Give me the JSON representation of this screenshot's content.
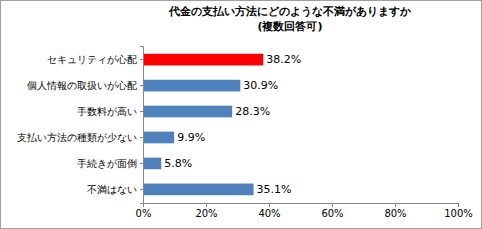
{
  "chart_data": {
    "type": "bar",
    "orientation": "horizontal",
    "title": "代金の支払い方法にどのような不満がありますか",
    "subtitle": "(複数回答可)",
    "categories": [
      "セキュリティが心配",
      "個人情報の取扱いが心配",
      "手数料が高い",
      "支払い方法の種類が少ない",
      "手続きが面倒",
      "不満はない"
    ],
    "values": [
      38.2,
      30.9,
      28.3,
      9.9,
      5.8,
      35.1
    ],
    "value_labels": [
      "38.2%",
      "30.9%",
      "28.3%",
      "9.9%",
      "5.8%",
      "35.1%"
    ],
    "colors": [
      "#ff0000",
      "#4f81bd",
      "#4f81bd",
      "#4f81bd",
      "#4f81bd",
      "#4f81bd"
    ],
    "data_labels": true,
    "grid": false,
    "xlim": [
      0,
      100
    ],
    "xticks": [
      {
        "value": 0,
        "label": "0%"
      },
      {
        "value": 20,
        "label": "20%"
      },
      {
        "value": 40,
        "label": "40%"
      },
      {
        "value": 60,
        "label": "60%"
      },
      {
        "value": 80,
        "label": "80%"
      },
      {
        "value": 100,
        "label": "100%"
      }
    ]
  }
}
